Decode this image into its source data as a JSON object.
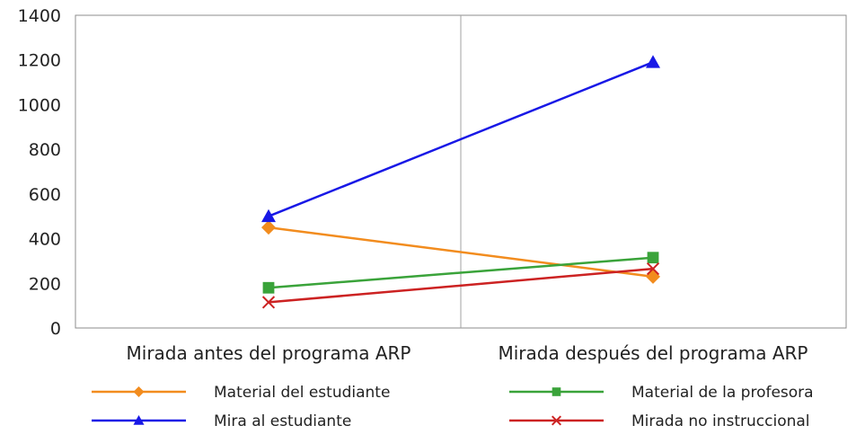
{
  "chart_data": {
    "type": "line",
    "title": "",
    "xlabel": "",
    "ylabel": "",
    "ylim": [
      0,
      1400
    ],
    "yticks": [
      0,
      200,
      400,
      600,
      800,
      1000,
      1200,
      1400
    ],
    "grid": false,
    "legend_position": "bottom",
    "categories": [
      "Mirada antes del programa ARP",
      "Mirada después del programa ARP"
    ],
    "series": [
      {
        "name": "Material del estudiante",
        "color": "#f28c1e",
        "marker": "diamond",
        "values": [
          450,
          230
        ]
      },
      {
        "name": "Mira al estudiante",
        "color": "#1818e6",
        "marker": "triangle",
        "values": [
          500,
          1190
        ]
      },
      {
        "name": "Material de la profesora",
        "color": "#3aa33a",
        "marker": "square",
        "values": [
          180,
          315
        ]
      },
      {
        "name": "Mirada no instruccional",
        "color": "#cc2222",
        "marker": "x",
        "values": [
          115,
          265
        ]
      }
    ]
  }
}
